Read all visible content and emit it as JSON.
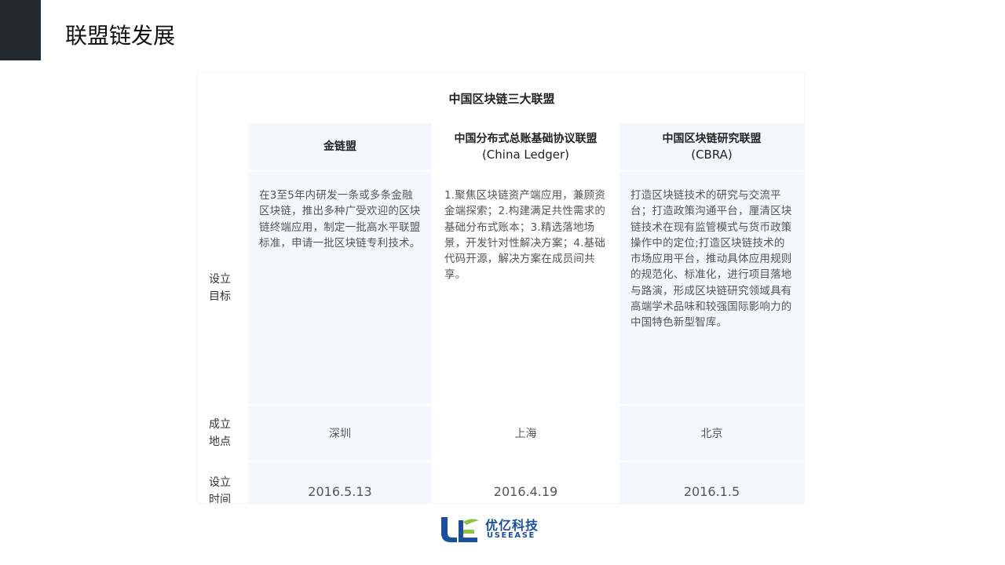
{
  "page": {
    "title": "联盟链发展"
  },
  "table": {
    "caption": "中国区块链三大联盟",
    "columns": [
      {
        "name": "金链盟",
        "sub": ""
      },
      {
        "name": "中国分布式总账基础协议联盟",
        "sub": "(China Ledger)"
      },
      {
        "name": "中国区块链研究联盟",
        "sub": "(CBRA)"
      }
    ],
    "row_labels": {
      "goal": "设立目标",
      "place": "成立地点",
      "time": "设立时间"
    },
    "goals": [
      "在3至5年内研发一条或多条金融区块链，推出多种广受欢迎的区块链终端应用，制定一批高水平联盟标准，申请一批区块链专利技术。",
      "1.聚焦区块链资产端应用，兼顾资金端探索；2.构建满足共性需求的基础分布式账本；3.精选落地场景，开发针对性解决方案；4.基础代码开源，解决方案在成员间共享。",
      "打造区块链技术的研究与交流平台；打造政策沟通平台，厘清区块链技术在现有监管模式与货币政策操作中的定位;打造区块链技术的市场应用平台，推动具体应用规则的规范化、标准化，进行项目落地与路演，形成区块链研究领域具有高端学术品味和较强国际影响力的中国特色新型智库。"
    ],
    "places": [
      "深圳",
      "上海",
      "北京"
    ],
    "dates": [
      "2016.5.13",
      "2016.4.19",
      "2016.1.5"
    ]
  },
  "logo": {
    "cn": "优亿科技",
    "en": "USEEASE",
    "colors": {
      "blue": "#1a4f9c",
      "green": "#8cc63f"
    }
  }
}
